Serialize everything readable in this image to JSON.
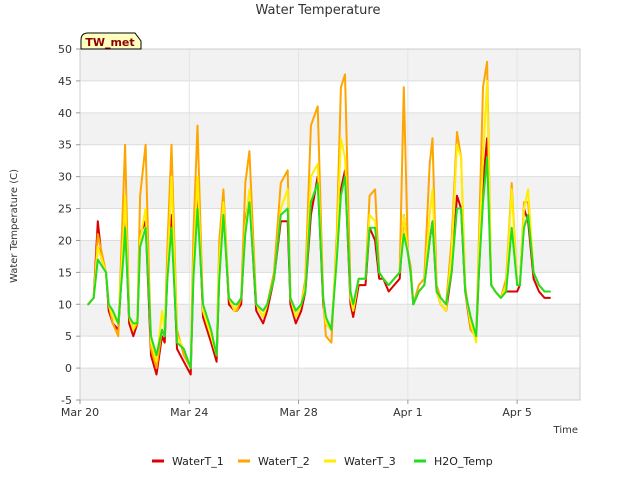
{
  "chart_data": {
    "type": "line",
    "title": "Water Temperature",
    "xlabel": "Time",
    "ylabel": "Water Temperature (C)",
    "station_tag": "TW_met",
    "x_range_days": [
      0,
      18.3
    ],
    "ylim": [
      -5,
      50
    ],
    "y_ticks": [
      -5,
      0,
      5,
      10,
      15,
      20,
      25,
      30,
      35,
      40,
      45,
      50
    ],
    "x_ticks": [
      {
        "label": "Mar 20",
        "day": 0
      },
      {
        "label": "Mar 24",
        "day": 4
      },
      {
        "label": "Mar 28",
        "day": 8
      },
      {
        "label": "Apr 1",
        "day": 12
      },
      {
        "label": "Apr 5",
        "day": 16
      }
    ],
    "grid": true,
    "band_shading": true,
    "legend_position": "bottom",
    "x_unit": "days since Mar 20",
    "series": [
      {
        "name": "WaterT_1",
        "color": "#dd0000",
        "x": [
          0.3,
          0.5,
          0.65,
          0.8,
          0.95,
          1.05,
          1.2,
          1.4,
          1.6,
          1.65,
          1.8,
          1.95,
          2.1,
          2.2,
          2.4,
          2.6,
          2.8,
          3.0,
          3.1,
          3.2,
          3.35,
          3.55,
          3.8,
          4.05,
          4.15,
          4.3,
          4.5,
          4.8,
          5.0,
          5.1,
          5.25,
          5.45,
          5.65,
          5.75,
          5.9,
          6.05,
          6.2,
          6.45,
          6.7,
          6.85,
          7.1,
          7.35,
          7.6,
          7.7,
          7.9,
          8.1,
          8.25,
          8.45,
          8.7,
          8.9,
          9.0,
          9.2,
          9.4,
          9.55,
          9.7,
          9.9,
          10.0,
          10.2,
          10.45,
          10.6,
          10.8,
          10.95,
          11.1,
          11.3,
          11.5,
          11.7,
          11.85,
          12.0,
          12.1,
          12.2,
          12.4,
          12.6,
          12.8,
          12.9,
          13.05,
          13.2,
          13.4,
          13.6,
          13.8,
          13.95,
          14.1,
          14.3,
          14.5,
          14.6,
          14.75,
          14.9,
          15.05,
          15.2,
          15.4,
          15.6,
          15.8,
          16.0,
          16.1,
          16.25,
          16.4,
          16.6,
          16.8,
          17.0,
          17.2
        ],
        "y": [
          10,
          11,
          23,
          17,
          15,
          9,
          7,
          6,
          20,
          24,
          7,
          5,
          7,
          21,
          23,
          2,
          -1,
          5,
          4,
          15,
          24,
          3,
          1,
          -1,
          15,
          29,
          8,
          4,
          1,
          15,
          26,
          10,
          9,
          9,
          10,
          23,
          27,
          9,
          7,
          9,
          14,
          23,
          23,
          10,
          7,
          9,
          12,
          24,
          30,
          10,
          7,
          6,
          18,
          28,
          31,
          10,
          8,
          13,
          13,
          22,
          20,
          14,
          14,
          12,
          13,
          14,
          24,
          18,
          15,
          10,
          12,
          13,
          20,
          23,
          12,
          10,
          9,
          15,
          27,
          25,
          12,
          6,
          5,
          15,
          29,
          36,
          13,
          12,
          11,
          12,
          12,
          12,
          13,
          25,
          23,
          14,
          12,
          11,
          11
        ]
      },
      {
        "name": "WaterT_2",
        "color": "#ffa500",
        "x": [
          0.3,
          0.5,
          0.65,
          0.8,
          0.95,
          1.05,
          1.2,
          1.4,
          1.6,
          1.65,
          1.8,
          1.95,
          2.1,
          2.2,
          2.4,
          2.6,
          2.8,
          3.0,
          3.1,
          3.2,
          3.35,
          3.55,
          3.8,
          4.05,
          4.15,
          4.3,
          4.5,
          4.8,
          5.0,
          5.1,
          5.25,
          5.45,
          5.65,
          5.75,
          5.9,
          6.05,
          6.2,
          6.45,
          6.7,
          6.85,
          7.1,
          7.35,
          7.6,
          7.7,
          7.9,
          8.1,
          8.25,
          8.45,
          8.7,
          8.9,
          9.0,
          9.2,
          9.4,
          9.55,
          9.7,
          9.9,
          10.0,
          10.2,
          10.45,
          10.6,
          10.8,
          10.95,
          11.1,
          11.3,
          11.5,
          11.7,
          11.85,
          12.0,
          12.1,
          12.2,
          12.4,
          12.6,
          12.8,
          12.9,
          13.05,
          13.2,
          13.4,
          13.6,
          13.8,
          13.95,
          14.1,
          14.3,
          14.5,
          14.6,
          14.75,
          14.9,
          15.05,
          15.2,
          15.4,
          15.6,
          15.8,
          16.0,
          16.1,
          16.25,
          16.4,
          16.6,
          16.8,
          17.0,
          17.2
        ],
        "y": [
          10,
          11,
          21,
          18,
          15,
          10,
          7,
          5,
          29,
          35,
          8,
          6,
          7,
          27,
          35,
          3,
          0,
          6,
          5,
          19,
          35,
          6,
          2,
          0,
          21,
          38,
          9,
          5,
          2,
          20,
          28,
          11,
          9,
          9,
          11,
          29,
          34,
          10,
          8,
          10,
          15,
          29,
          31,
          11,
          8,
          10,
          14,
          38,
          41,
          11,
          5,
          4,
          21,
          44,
          46,
          12,
          9,
          14,
          14,
          27,
          28,
          15,
          14,
          13,
          14,
          15,
          44,
          18,
          16,
          10,
          13,
          14,
          32,
          36,
          13,
          11,
          10,
          20,
          37,
          33,
          13,
          6,
          5,
          20,
          44,
          48,
          13,
          12,
          11,
          14,
          29,
          13,
          13,
          26,
          26,
          15,
          13,
          12,
          12
        ]
      },
      {
        "name": "WaterT_3",
        "color": "#ffee00",
        "x": [
          0.3,
          0.5,
          0.65,
          0.8,
          0.95,
          1.05,
          1.2,
          1.4,
          1.6,
          1.65,
          1.8,
          1.95,
          2.1,
          2.2,
          2.4,
          2.6,
          2.8,
          3.0,
          3.1,
          3.2,
          3.35,
          3.55,
          3.8,
          4.05,
          4.15,
          4.3,
          4.5,
          4.8,
          5.0,
          5.1,
          5.25,
          5.45,
          5.65,
          5.75,
          5.9,
          6.05,
          6.2,
          6.45,
          6.7,
          6.85,
          7.1,
          7.35,
          7.6,
          7.7,
          7.9,
          8.1,
          8.25,
          8.45,
          8.7,
          8.9,
          9.0,
          9.2,
          9.4,
          9.55,
          9.7,
          9.9,
          10.0,
          10.2,
          10.45,
          10.6,
          10.8,
          10.95,
          11.1,
          11.3,
          11.5,
          11.7,
          11.85,
          12.0,
          12.1,
          12.2,
          12.4,
          12.6,
          12.8,
          12.9,
          13.05,
          13.2,
          13.4,
          13.6,
          13.8,
          13.95,
          14.1,
          14.3,
          14.5,
          14.6,
          14.75,
          14.9,
          15.05,
          15.2,
          15.4,
          15.6,
          15.8,
          16.0,
          16.1,
          16.25,
          16.4,
          16.6,
          16.8,
          17.0,
          17.2
        ],
        "y": [
          10,
          11,
          19,
          17,
          15,
          10,
          8,
          7,
          22,
          27,
          8,
          6,
          8,
          20,
          25,
          4,
          1,
          9,
          6,
          15,
          30,
          5,
          3,
          0,
          16,
          30,
          9,
          5,
          2,
          17,
          26,
          11,
          9,
          10,
          11,
          22,
          28,
          10,
          8,
          10,
          14,
          25,
          28,
          11,
          8,
          10,
          13,
          30,
          32,
          11,
          7,
          6,
          19,
          36,
          33,
          11,
          9,
          14,
          14,
          24,
          23,
          15,
          14,
          13,
          14,
          15,
          24,
          18,
          15,
          10,
          12,
          13,
          24,
          28,
          12,
          10,
          9,
          18,
          35,
          33,
          12,
          7,
          4,
          18,
          33,
          45,
          13,
          12,
          11,
          13,
          28,
          13,
          13,
          25,
          28,
          15,
          13,
          12,
          12
        ]
      },
      {
        "name": "H2O_Temp",
        "color": "#22dd22",
        "x": [
          0.3,
          0.5,
          0.65,
          0.8,
          0.95,
          1.05,
          1.2,
          1.4,
          1.6,
          1.65,
          1.8,
          1.95,
          2.1,
          2.2,
          2.4,
          2.6,
          2.8,
          3.0,
          3.1,
          3.2,
          3.35,
          3.55,
          3.8,
          4.05,
          4.15,
          4.3,
          4.5,
          4.8,
          5.0,
          5.1,
          5.25,
          5.45,
          5.65,
          5.75,
          5.9,
          6.05,
          6.2,
          6.45,
          6.7,
          6.85,
          7.1,
          7.35,
          7.6,
          7.7,
          7.9,
          8.1,
          8.25,
          8.45,
          8.7,
          8.9,
          9.0,
          9.2,
          9.4,
          9.55,
          9.7,
          9.9,
          10.0,
          10.2,
          10.45,
          10.6,
          10.8,
          10.95,
          11.1,
          11.3,
          11.5,
          11.7,
          11.85,
          12.0,
          12.1,
          12.2,
          12.4,
          12.6,
          12.8,
          12.9,
          13.05,
          13.2,
          13.4,
          13.6,
          13.8,
          13.95,
          14.1,
          14.3,
          14.5,
          14.6,
          14.75,
          14.9,
          15.05,
          15.2,
          15.4,
          15.6,
          15.8,
          16.0,
          16.1,
          16.25,
          16.4,
          16.6,
          16.8,
          17.0,
          17.2
        ],
        "y": [
          10,
          11,
          17,
          16,
          15,
          10,
          9,
          7,
          18,
          22,
          8,
          7,
          7,
          19,
          22,
          5,
          2,
          6,
          5,
          14,
          22,
          4,
          3,
          0,
          14,
          25,
          10,
          6,
          2,
          14,
          24,
          11,
          10,
          10,
          11,
          21,
          26,
          10,
          9,
          10,
          14,
          24,
          25,
          11,
          9,
          10,
          12,
          26,
          29,
          11,
          8,
          6,
          17,
          27,
          30,
          12,
          10,
          14,
          14,
          22,
          22,
          15,
          14,
          13,
          14,
          15,
          21,
          18,
          15,
          10,
          12,
          13,
          20,
          23,
          12,
          11,
          10,
          15,
          25,
          25,
          12,
          8,
          5,
          15,
          26,
          33,
          13,
          12,
          11,
          12,
          22,
          13,
          13,
          22,
          24,
          15,
          13,
          12,
          12
        ]
      }
    ]
  }
}
